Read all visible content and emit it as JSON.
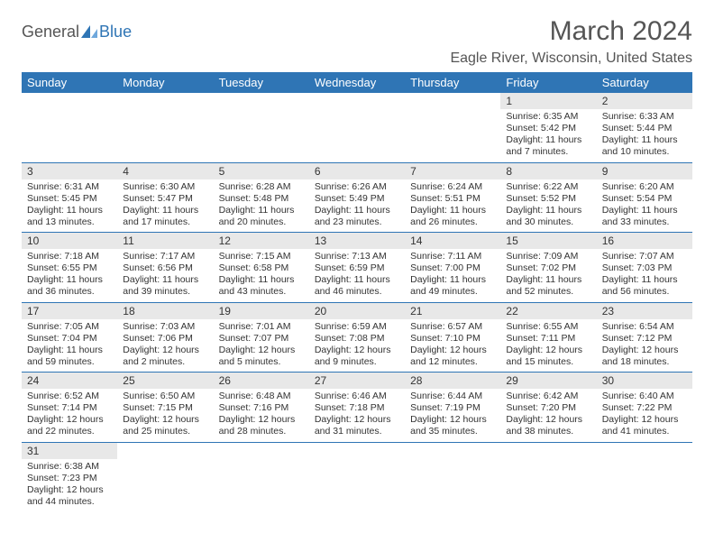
{
  "logo": {
    "part1": "General",
    "part2": "Blue"
  },
  "title": "March 2024",
  "location": "Eagle River, Wisconsin, United States",
  "colors": {
    "header_bg": "#2f75b5",
    "header_fg": "#ffffff",
    "daynum_bg": "#e8e8e8",
    "row_border": "#2f75b5",
    "page_bg": "#ffffff",
    "text": "#333333",
    "title_text": "#555555"
  },
  "typography": {
    "title_fontsize": 30,
    "location_fontsize": 16,
    "weekday_fontsize": 13,
    "daynum_fontsize": 12,
    "cell_fontsize": 10.5
  },
  "layout": {
    "columns": 7,
    "rows": 6,
    "aspect_w": 792,
    "aspect_h": 612
  },
  "weekdays": [
    "Sunday",
    "Monday",
    "Tuesday",
    "Wednesday",
    "Thursday",
    "Friday",
    "Saturday"
  ],
  "cells": [
    [
      null,
      null,
      null,
      null,
      null,
      {
        "day": "1",
        "sunrise": "Sunrise: 6:35 AM",
        "sunset": "Sunset: 5:42 PM",
        "daylight1": "Daylight: 11 hours",
        "daylight2": "and 7 minutes."
      },
      {
        "day": "2",
        "sunrise": "Sunrise: 6:33 AM",
        "sunset": "Sunset: 5:44 PM",
        "daylight1": "Daylight: 11 hours",
        "daylight2": "and 10 minutes."
      }
    ],
    [
      {
        "day": "3",
        "sunrise": "Sunrise: 6:31 AM",
        "sunset": "Sunset: 5:45 PM",
        "daylight1": "Daylight: 11 hours",
        "daylight2": "and 13 minutes."
      },
      {
        "day": "4",
        "sunrise": "Sunrise: 6:30 AM",
        "sunset": "Sunset: 5:47 PM",
        "daylight1": "Daylight: 11 hours",
        "daylight2": "and 17 minutes."
      },
      {
        "day": "5",
        "sunrise": "Sunrise: 6:28 AM",
        "sunset": "Sunset: 5:48 PM",
        "daylight1": "Daylight: 11 hours",
        "daylight2": "and 20 minutes."
      },
      {
        "day": "6",
        "sunrise": "Sunrise: 6:26 AM",
        "sunset": "Sunset: 5:49 PM",
        "daylight1": "Daylight: 11 hours",
        "daylight2": "and 23 minutes."
      },
      {
        "day": "7",
        "sunrise": "Sunrise: 6:24 AM",
        "sunset": "Sunset: 5:51 PM",
        "daylight1": "Daylight: 11 hours",
        "daylight2": "and 26 minutes."
      },
      {
        "day": "8",
        "sunrise": "Sunrise: 6:22 AM",
        "sunset": "Sunset: 5:52 PM",
        "daylight1": "Daylight: 11 hours",
        "daylight2": "and 30 minutes."
      },
      {
        "day": "9",
        "sunrise": "Sunrise: 6:20 AM",
        "sunset": "Sunset: 5:54 PM",
        "daylight1": "Daylight: 11 hours",
        "daylight2": "and 33 minutes."
      }
    ],
    [
      {
        "day": "10",
        "sunrise": "Sunrise: 7:18 AM",
        "sunset": "Sunset: 6:55 PM",
        "daylight1": "Daylight: 11 hours",
        "daylight2": "and 36 minutes."
      },
      {
        "day": "11",
        "sunrise": "Sunrise: 7:17 AM",
        "sunset": "Sunset: 6:56 PM",
        "daylight1": "Daylight: 11 hours",
        "daylight2": "and 39 minutes."
      },
      {
        "day": "12",
        "sunrise": "Sunrise: 7:15 AM",
        "sunset": "Sunset: 6:58 PM",
        "daylight1": "Daylight: 11 hours",
        "daylight2": "and 43 minutes."
      },
      {
        "day": "13",
        "sunrise": "Sunrise: 7:13 AM",
        "sunset": "Sunset: 6:59 PM",
        "daylight1": "Daylight: 11 hours",
        "daylight2": "and 46 minutes."
      },
      {
        "day": "14",
        "sunrise": "Sunrise: 7:11 AM",
        "sunset": "Sunset: 7:00 PM",
        "daylight1": "Daylight: 11 hours",
        "daylight2": "and 49 minutes."
      },
      {
        "day": "15",
        "sunrise": "Sunrise: 7:09 AM",
        "sunset": "Sunset: 7:02 PM",
        "daylight1": "Daylight: 11 hours",
        "daylight2": "and 52 minutes."
      },
      {
        "day": "16",
        "sunrise": "Sunrise: 7:07 AM",
        "sunset": "Sunset: 7:03 PM",
        "daylight1": "Daylight: 11 hours",
        "daylight2": "and 56 minutes."
      }
    ],
    [
      {
        "day": "17",
        "sunrise": "Sunrise: 7:05 AM",
        "sunset": "Sunset: 7:04 PM",
        "daylight1": "Daylight: 11 hours",
        "daylight2": "and 59 minutes."
      },
      {
        "day": "18",
        "sunrise": "Sunrise: 7:03 AM",
        "sunset": "Sunset: 7:06 PM",
        "daylight1": "Daylight: 12 hours",
        "daylight2": "and 2 minutes."
      },
      {
        "day": "19",
        "sunrise": "Sunrise: 7:01 AM",
        "sunset": "Sunset: 7:07 PM",
        "daylight1": "Daylight: 12 hours",
        "daylight2": "and 5 minutes."
      },
      {
        "day": "20",
        "sunrise": "Sunrise: 6:59 AM",
        "sunset": "Sunset: 7:08 PM",
        "daylight1": "Daylight: 12 hours",
        "daylight2": "and 9 minutes."
      },
      {
        "day": "21",
        "sunrise": "Sunrise: 6:57 AM",
        "sunset": "Sunset: 7:10 PM",
        "daylight1": "Daylight: 12 hours",
        "daylight2": "and 12 minutes."
      },
      {
        "day": "22",
        "sunrise": "Sunrise: 6:55 AM",
        "sunset": "Sunset: 7:11 PM",
        "daylight1": "Daylight: 12 hours",
        "daylight2": "and 15 minutes."
      },
      {
        "day": "23",
        "sunrise": "Sunrise: 6:54 AM",
        "sunset": "Sunset: 7:12 PM",
        "daylight1": "Daylight: 12 hours",
        "daylight2": "and 18 minutes."
      }
    ],
    [
      {
        "day": "24",
        "sunrise": "Sunrise: 6:52 AM",
        "sunset": "Sunset: 7:14 PM",
        "daylight1": "Daylight: 12 hours",
        "daylight2": "and 22 minutes."
      },
      {
        "day": "25",
        "sunrise": "Sunrise: 6:50 AM",
        "sunset": "Sunset: 7:15 PM",
        "daylight1": "Daylight: 12 hours",
        "daylight2": "and 25 minutes."
      },
      {
        "day": "26",
        "sunrise": "Sunrise: 6:48 AM",
        "sunset": "Sunset: 7:16 PM",
        "daylight1": "Daylight: 12 hours",
        "daylight2": "and 28 minutes."
      },
      {
        "day": "27",
        "sunrise": "Sunrise: 6:46 AM",
        "sunset": "Sunset: 7:18 PM",
        "daylight1": "Daylight: 12 hours",
        "daylight2": "and 31 minutes."
      },
      {
        "day": "28",
        "sunrise": "Sunrise: 6:44 AM",
        "sunset": "Sunset: 7:19 PM",
        "daylight1": "Daylight: 12 hours",
        "daylight2": "and 35 minutes."
      },
      {
        "day": "29",
        "sunrise": "Sunrise: 6:42 AM",
        "sunset": "Sunset: 7:20 PM",
        "daylight1": "Daylight: 12 hours",
        "daylight2": "and 38 minutes."
      },
      {
        "day": "30",
        "sunrise": "Sunrise: 6:40 AM",
        "sunset": "Sunset: 7:22 PM",
        "daylight1": "Daylight: 12 hours",
        "daylight2": "and 41 minutes."
      }
    ],
    [
      {
        "day": "31",
        "sunrise": "Sunrise: 6:38 AM",
        "sunset": "Sunset: 7:23 PM",
        "daylight1": "Daylight: 12 hours",
        "daylight2": "and 44 minutes."
      },
      null,
      null,
      null,
      null,
      null,
      null
    ]
  ]
}
